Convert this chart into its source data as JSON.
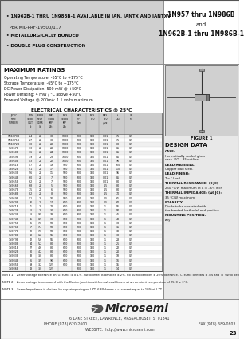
{
  "title_right_line1": "1N957 thru 1N986B",
  "title_right_line2": "and",
  "title_right_line3": "1N962B-1 thru 1N986B-1",
  "bullet1a": "• 1N962B-1 THRU 1N986B-1 AVAILABLE IN ",
  "bullet1b_bold": "JAN, JANTX AND JANTXV",
  "bullet1c": "  PER MIL-PRF-19500/117",
  "bullet2": "• METALLURGICALLY BONDED",
  "bullet3": "• DOUBLE PLUG CONSTRUCTION",
  "section_max": "MAXIMUM RATINGS",
  "max_ratings": [
    "Operating Temperature: -65°C to +175°C",
    "Storage Temperature: -65°C to +175°C",
    "DC Power Dissipation: 500 mW @ +50°C",
    "Power Derating: 4 mW / °C above +50°C",
    "Forward Voltage @ 200mA: 1.1 volts maximum"
  ],
  "elec_char_title": "ELECTRICAL CHARACTERISTICS @ 25°C",
  "figure_label": "FIGURE 1",
  "design_data_title": "DESIGN DATA",
  "design_data": [
    [
      "CASE:",
      "Hermetically sealed glass\ncase, DO – 35 outline."
    ],
    [
      "LEAD MATERIAL:",
      "Copper clad steel."
    ],
    [
      "LEAD FINISH:",
      "Tin / Lead."
    ],
    [
      "THERMAL RESISTANCE: (θ JC)",
      "250 °C/W maximum at L = .375 Inch"
    ],
    [
      "THERMAL IMPEDANCE: (Δθ JC):",
      "35 °C/W maximum"
    ],
    [
      "POLARITY:",
      "Diode to be operated with\nthe banded (cathode) end positive."
    ],
    [
      "MOUNTING POSITION:",
      "Any"
    ]
  ],
  "note1": "NOTE 1    Zener voltage tolerance on 'G' suffix is ± 1%. Suffix letter B denotes ± 2%. No Suffix denotes ± 20% tolerance. 'C' suffix denotes ± 3% and 'D' suffix denotes ± 1%.",
  "note2": "NOTE 2    Zener voltage is measured with the Device Junction at thermal equilibrium at an ambient temperature of 25°C ± 3°C.",
  "note3": "NOTE 3    Zener Impedance is derived by superimposing on I₃ZT, 6.60Hz rms a.c. current equal to 10% of I₃ZT",
  "company_name": "Microsemi",
  "address": "6 LAKE STREET, LAWRENCE, MASSACHUSETTS  01841",
  "phone": "PHONE (978) 620-2600",
  "fax": "FAX (978) 689-0803",
  "website": "WEBSITE:  http://www.microsemi.com",
  "page_num": "23",
  "bg_header": "#d0d0d0",
  "bg_body_right": "#e8e8e8",
  "table_rows": [
    [
      "1N4370B",
      "2.4",
      "20",
      "30",
      "1000",
      "100",
      "150",
      "0.01",
      "75",
      "0.5",
      "1"
    ],
    [
      "1N4371B",
      "2.7",
      "20",
      "30",
      "1000",
      "100",
      "150",
      "0.01",
      "75",
      "0.5",
      "1"
    ],
    [
      "1N4372B",
      "3.0",
      "20",
      "28",
      "1000",
      "100",
      "150",
      "0.01",
      "80",
      "0.5",
      "1"
    ],
    [
      "1N957B",
      "3.3",
      "20",
      "28",
      "1000",
      "100",
      "150",
      "0.01",
      "85",
      "0.5",
      "1"
    ],
    [
      "1N958B",
      "3.6",
      "20",
      "24",
      "1000",
      "100",
      "150",
      "0.01",
      "85",
      "0.5",
      "0.5"
    ],
    [
      "1N959B",
      "3.9",
      "20",
      "23",
      "1000",
      "100",
      "150",
      "0.01",
      "85",
      "0.5",
      "0.5"
    ],
    [
      "1N960B",
      "4.3",
      "20",
      "22",
      "1000",
      "100",
      "150",
      "0.01",
      "90",
      "0.5",
      "0.5"
    ],
    [
      "1N961B",
      "4.7",
      "20",
      "19",
      "500",
      "100",
      "150",
      "0.01",
      "100",
      "0.5",
      "0.5"
    ],
    [
      "1N962B",
      "5.1",
      "20",
      "17",
      "500",
      "100",
      "150",
      "0.01",
      "110",
      "0.5",
      "0.5"
    ],
    [
      "1N963B",
      "5.6",
      "20",
      "11",
      "500",
      "100",
      "150",
      "0.01",
      "95",
      "0.5",
      "0.5"
    ],
    [
      "1N964B",
      "6.0",
      "20",
      "7",
      "500",
      "100",
      "150",
      "0.01",
      "85",
      "0.5",
      "0.5"
    ],
    [
      "1N965B",
      "6.2",
      "20",
      "7",
      "500",
      "100",
      "150",
      "0.01",
      "80",
      "0.5",
      "0.5"
    ],
    [
      "1N966B",
      "6.8",
      "20",
      "5",
      "500",
      "100",
      "150",
      "0.5",
      "80",
      "0.5",
      "1"
    ],
    [
      "1N967B",
      "7.5",
      "20",
      "6",
      "500",
      "100",
      "150",
      "0.5",
      "80",
      "0.5",
      "1"
    ],
    [
      "1N968B",
      "8.2",
      "20",
      "8",
      "500",
      "100",
      "150",
      "0.5",
      "70",
      "0.5",
      "1"
    ],
    [
      "1N969B",
      "9.1",
      "20",
      "10",
      "500",
      "100",
      "150",
      "0.5",
      "65",
      "0.5",
      "1"
    ],
    [
      "1N970B",
      "10",
      "20",
      "17",
      "600",
      "100",
      "150",
      "0.5",
      "60",
      "0.5",
      "1"
    ],
    [
      "1N971B",
      "11",
      "20",
      "22",
      "600",
      "100",
      "150",
      "1",
      "55",
      "0.5",
      "1"
    ],
    [
      "1N972B",
      "12",
      "20",
      "30",
      "600",
      "100",
      "150",
      "1",
      "50",
      "0.5",
      "1"
    ],
    [
      "1N973B",
      "13",
      "9.5",
      "33",
      "600",
      "100",
      "150",
      "1",
      "45",
      "0.5",
      "1"
    ],
    [
      "1N974B",
      "15",
      "8.5",
      "38",
      "600",
      "100",
      "150",
      "1",
      "40",
      "0.5",
      "1"
    ],
    [
      "1N975B",
      "16",
      "7.8",
      "50",
      "600",
      "100",
      "150",
      "1",
      "38",
      "0.5",
      "1"
    ],
    [
      "1N976B",
      "17",
      "7.4",
      "50",
      "600",
      "100",
      "150",
      "1",
      "35",
      "0.5",
      "1"
    ],
    [
      "1N977B",
      "18",
      "7.0",
      "50",
      "600",
      "100",
      "150",
      "1",
      "33",
      "0.5",
      "1"
    ],
    [
      "1N978B",
      "20",
      "6.2",
      "55",
      "600",
      "100",
      "150",
      "1",
      "30",
      "0.5",
      "1"
    ],
    [
      "1N979B",
      "22",
      "5.6",
      "55",
      "600",
      "100",
      "150",
      "1",
      "28",
      "0.5",
      "1"
    ],
    [
      "1N980B",
      "24",
      "5.2",
      "80",
      "600",
      "100",
      "150",
      "1",
      "25",
      "0.5",
      "1"
    ],
    [
      "1N981B",
      "27",
      "4.6",
      "80",
      "600",
      "100",
      "150",
      "1",
      "22",
      "0.5",
      "1"
    ],
    [
      "1N982B",
      "30",
      "4.2",
      "80",
      "600",
      "100",
      "150",
      "1",
      "20",
      "0.5",
      "1"
    ],
    [
      "1N983B",
      "33",
      "3.8",
      "80",
      "600",
      "100",
      "150",
      "1",
      "18",
      "0.5",
      "1"
    ],
    [
      "1N984B",
      "36",
      "3.5",
      "90",
      "600",
      "100",
      "150",
      "1",
      "16",
      "0.5",
      "1"
    ],
    [
      "1N985B",
      "39",
      "3.2",
      "125",
      "600",
      "100",
      "150",
      "1",
      "15",
      "0.5",
      "1"
    ],
    [
      "1N986B",
      "43",
      "3.0",
      "125",
      "",
      "100",
      "150",
      "1",
      "14",
      "0.5",
      "1"
    ]
  ]
}
